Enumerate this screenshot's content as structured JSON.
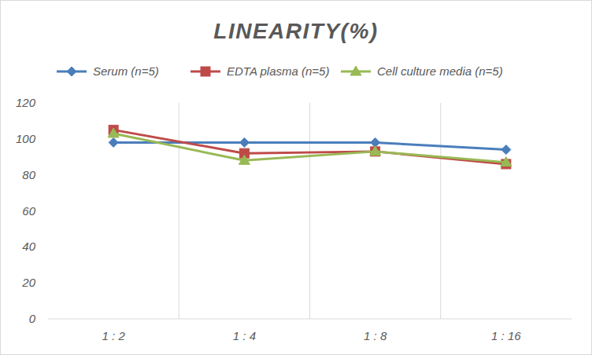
{
  "chart_data": {
    "type": "line",
    "title": "LINEARITY(%)",
    "categories": [
      "1 : 2",
      "1 : 4",
      "1 : 8",
      "1 : 16"
    ],
    "series": [
      {
        "name": "Serum (n=5)",
        "color": "#4a7ebb",
        "marker": "diamond",
        "values": [
          98,
          98,
          98,
          94
        ]
      },
      {
        "name": "EDTA plasma (n=5)",
        "color": "#be4b48",
        "marker": "square",
        "values": [
          105,
          92,
          93,
          86
        ]
      },
      {
        "name": "Cell culture media (n=5)",
        "color": "#98b954",
        "marker": "triangle",
        "values": [
          103,
          88,
          93,
          87
        ]
      }
    ],
    "ylim": [
      0,
      120
    ],
    "yticks": [
      0,
      20,
      40,
      60,
      80,
      100,
      120
    ],
    "grid": true,
    "legend": "top"
  }
}
